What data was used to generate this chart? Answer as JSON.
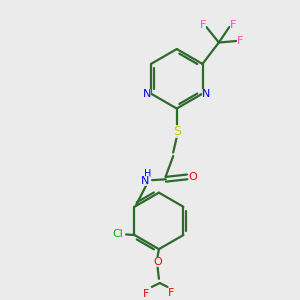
{
  "background_color": "#ebebeb",
  "bond_color": "#2d6b2d",
  "N_color": "#0000ff",
  "S_color": "#cccc00",
  "O_color": "#ff0000",
  "Cl_color": "#00bb00",
  "F_color_pink": "#ff44cc",
  "F_color_red": "#ff0000",
  "line_width": 1.6,
  "fig_width": 3.0,
  "fig_height": 3.0,
  "dpi": 100,
  "xlim": [
    0,
    10
  ],
  "ylim": [
    0,
    10
  ]
}
